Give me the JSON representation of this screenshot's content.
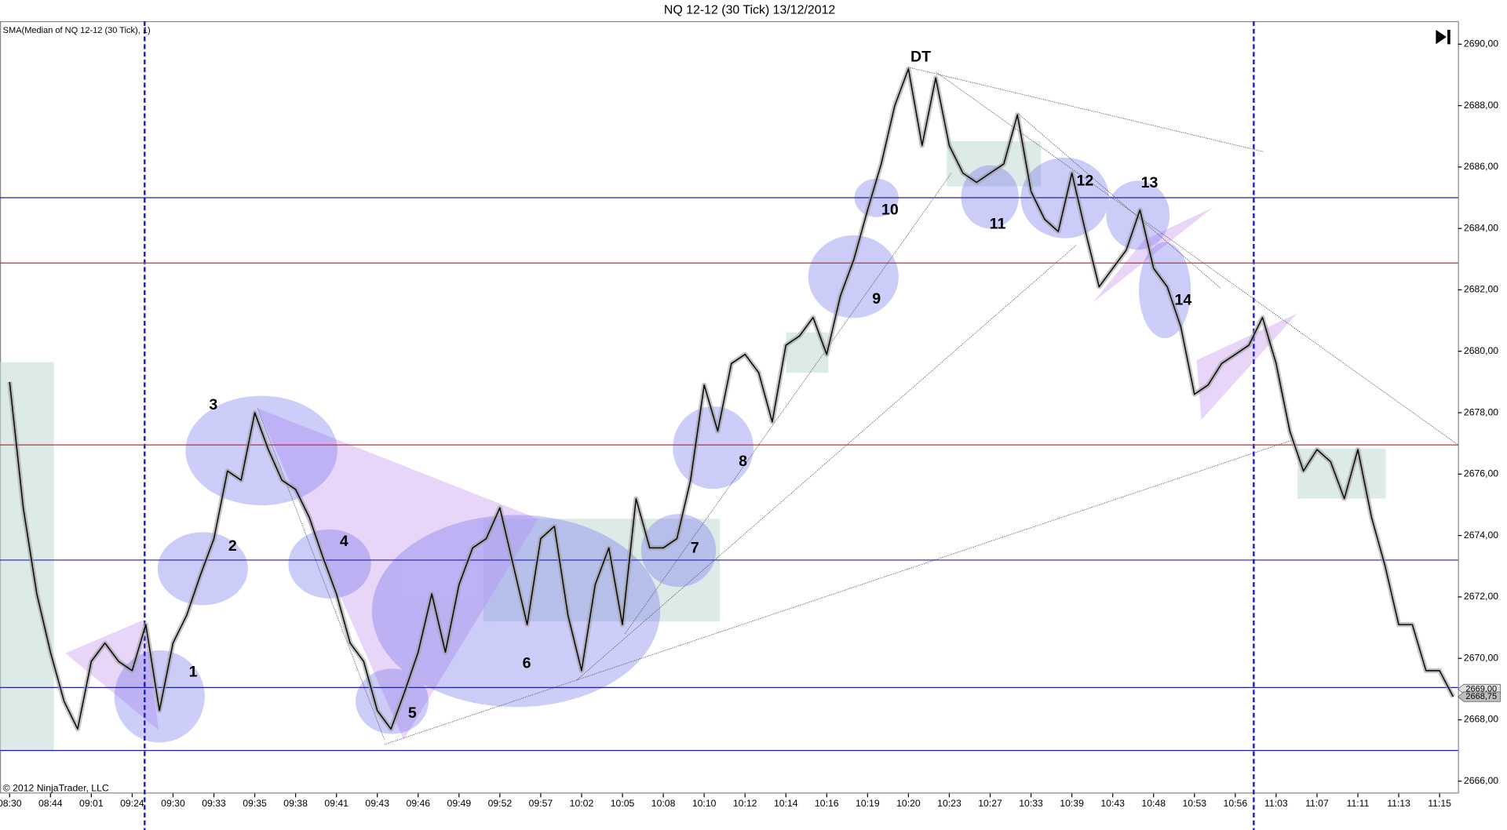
{
  "chart_data": {
    "type": "line",
    "title": "NQ 12-12 (30 Tick)  13/12/2012",
    "indicator_label": "SMA(Median of NQ 12-12 (30 Tick), 1)",
    "copyright": "© 2012 NinjaTrader, LLC",
    "categories": [
      "08:30",
      null,
      null,
      "08:44",
      null,
      null,
      "09:01",
      null,
      null,
      "09:24",
      null,
      null,
      "09:30",
      null,
      null,
      "09:33",
      null,
      null,
      "09:35",
      null,
      null,
      "09:38",
      null,
      null,
      "09:41",
      null,
      null,
      "09:43",
      null,
      null,
      "09:46",
      null,
      null,
      "09:49",
      null,
      null,
      "09:52",
      null,
      null,
      "09:57",
      null,
      null,
      "10:02",
      null,
      null,
      "10:05",
      null,
      null,
      "10:08",
      null,
      null,
      "10:10",
      null,
      null,
      "10:12",
      null,
      null,
      "10:14",
      null,
      null,
      "10:16",
      null,
      null,
      "10:19",
      null,
      null,
      "10:20",
      null,
      null,
      "10:23",
      null,
      null,
      "10:27",
      null,
      null,
      "10:33",
      null,
      null,
      "10:39",
      null,
      null,
      "10:43",
      null,
      null,
      "10:48",
      null,
      null,
      "10:53",
      null,
      null,
      "10:56",
      null,
      null,
      "11:03",
      null,
      null,
      "11:07",
      null,
      null,
      "11:11",
      null,
      null,
      "11:13",
      null,
      null,
      "11:15",
      null
    ],
    "series": [
      {
        "name": "SMA(Median of NQ 12-12 (30 Tick), 1)",
        "color": "#000000",
        "values": [
          2679,
          2674.9,
          2672.1,
          2670.2,
          2668.6,
          2667.7,
          2669.9,
          2670.5,
          2669.9,
          2669.6,
          2671.1,
          2668.3,
          2670.5,
          2671.4,
          2672.7,
          2673.9,
          2676.1,
          2675.8,
          2678.0,
          2676.8,
          2675.8,
          2675.5,
          2674.6,
          2673.3,
          2672.1,
          2670.5,
          2669.9,
          2668.3,
          2667.7,
          2668.9,
          2670.2,
          2672.1,
          2670.2,
          2672.4,
          2673.6,
          2673.9,
          2674.9,
          2673.0,
          2671.1,
          2673.9,
          2674.3,
          2671.4,
          2669.6,
          2672.4,
          2673.6,
          2671.1,
          2675.2,
          2673.6,
          2673.6,
          2673.9,
          2675.8,
          2678.9,
          2677.4,
          2679.6,
          2679.9,
          2679.3,
          2677.7,
          2680.2,
          2680.5,
          2681.1,
          2679.9,
          2681.8,
          2683.0,
          2684.6,
          2686.1,
          2688.0,
          2689.2,
          2686.7,
          2688.9,
          2686.7,
          2685.8,
          2685.5,
          2685.8,
          2686.1,
          2687.7,
          2685.2,
          2684.3,
          2683.9,
          2685.8,
          2683.9,
          2682.1,
          2682.7,
          2683.3,
          2684.6,
          2682.7,
          2682.1,
          2680.8,
          2678.6,
          2678.9,
          2679.6,
          2679.9,
          2680.2,
          2681.1,
          2679.6,
          2677.4,
          2676.1,
          2676.8,
          2676.4,
          2675.2,
          2676.8,
          2674.6,
          2673.0,
          2671.1,
          2671.1,
          2669.6,
          2669.6,
          2668.75
        ]
      }
    ],
    "ylim": [
      2665.6,
      2690.75
    ],
    "yticks": [
      {
        "value": 2666,
        "label": "2666,00"
      },
      {
        "value": 2668,
        "label": "2668,00"
      },
      {
        "value": 2670,
        "label": "2670,00"
      },
      {
        "value": 2672,
        "label": "2672,00"
      },
      {
        "value": 2674,
        "label": "2674,00"
      },
      {
        "value": 2676,
        "label": "2676,00"
      },
      {
        "value": 2678,
        "label": "2678,00"
      },
      {
        "value": 2680,
        "label": "2680,00"
      },
      {
        "value": 2682,
        "label": "2682,00"
      },
      {
        "value": 2684,
        "label": "2684,00"
      },
      {
        "value": 2686,
        "label": "2686,00"
      },
      {
        "value": 2688,
        "label": "2688,00"
      },
      {
        "value": 2690,
        "label": "2690,00"
      }
    ],
    "hlines": [
      {
        "value": 2685,
        "color": "#1f1fb4"
      },
      {
        "value": 2682.875,
        "color": "#c0303a"
      },
      {
        "value": 2676.95,
        "color": "#c0303a"
      },
      {
        "value": 2673.2,
        "color": "#1f1fb4"
      },
      {
        "value": 2669.05,
        "color": "#1f1fb4"
      },
      {
        "value": 2667,
        "color": "#1f1fb4"
      }
    ],
    "price_markers": [
      {
        "value": 2669,
        "label": "2669,00"
      },
      {
        "value": 2668.75,
        "label": "2668,75"
      }
    ],
    "annotations": [
      "1",
      "2",
      "3",
      "4",
      "5",
      "6",
      "7",
      "8",
      "9",
      "10",
      "11",
      "12",
      "13",
      "14",
      "DT"
    ]
  }
}
